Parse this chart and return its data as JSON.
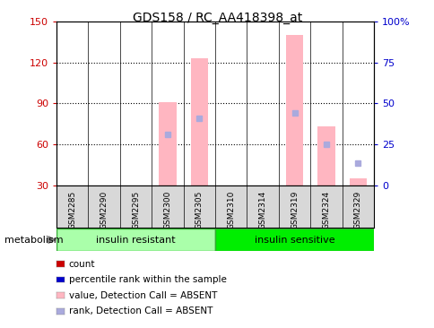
{
  "title": "GDS158 / RC_AA418398_at",
  "samples": [
    "GSM2285",
    "GSM2290",
    "GSM2295",
    "GSM2300",
    "GSM2305",
    "GSM2310",
    "GSM2314",
    "GSM2319",
    "GSM2324",
    "GSM2329"
  ],
  "ylim_left": [
    30,
    150
  ],
  "ylim_right": [
    0,
    100
  ],
  "yticks_left": [
    30,
    60,
    90,
    120,
    150
  ],
  "yticks_right": [
    0,
    25,
    50,
    75,
    100
  ],
  "ytick_labels_right": [
    "0",
    "25",
    "50",
    "75",
    "100%"
  ],
  "pink_bars_bottom": [
    30,
    30,
    30,
    30,
    30,
    30,
    30,
    30,
    30,
    30
  ],
  "pink_bars_top": [
    30,
    30,
    30,
    91,
    123,
    30,
    30,
    140,
    73,
    35
  ],
  "blue_dots_y": [
    null,
    null,
    null,
    67,
    79,
    null,
    null,
    83,
    60,
    46
  ],
  "blue_dots_present": [
    false,
    false,
    false,
    true,
    true,
    false,
    false,
    true,
    true,
    true
  ],
  "color_pink": "#FFB6C1",
  "color_blue_dot": "#AAAADD",
  "color_red_tick": "#CC0000",
  "color_blue_tick": "#0000CC",
  "group_color_resistant": "#AAFFAA",
  "group_color_sensitive": "#00EE00",
  "group_label_resistant": "insulin resistant",
  "group_label_sensitive": "insulin sensitive",
  "metabolism_label": "metabolism",
  "legend_items": [
    {
      "color": "#CC0000",
      "label": "count"
    },
    {
      "color": "#0000CC",
      "label": "percentile rank within the sample"
    },
    {
      "color": "#FFB6C1",
      "label": "value, Detection Call = ABSENT"
    },
    {
      "color": "#AAAADD",
      "label": "rank, Detection Call = ABSENT"
    }
  ],
  "n_resistant": 5,
  "n_sensitive": 5
}
